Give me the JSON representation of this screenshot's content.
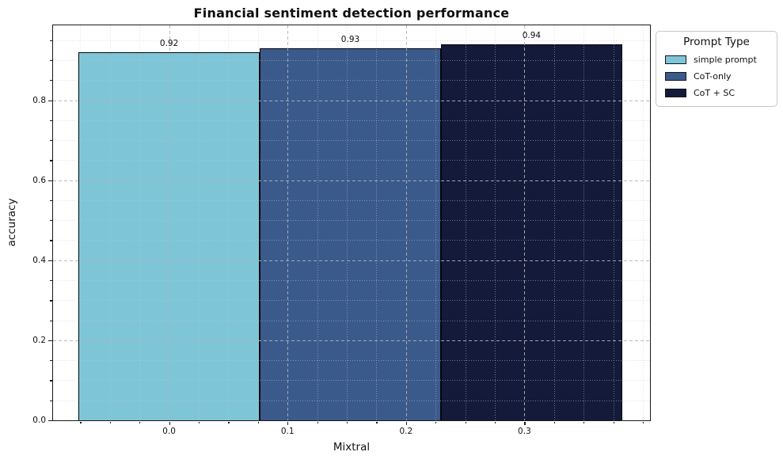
{
  "chart_data": {
    "type": "bar",
    "title": "Financial sentiment detection performance",
    "xlabel": "Mixtral",
    "ylabel": "accuracy",
    "categories": [
      "Mixtral"
    ],
    "legend": {
      "title": "Prompt Type",
      "position": "upper-right-outside"
    },
    "series": [
      {
        "name": "simple prompt",
        "value": 0.92,
        "value_label": "0.92",
        "color": "#7ec5d8",
        "center": 0.0
      },
      {
        "name": "CoT-only",
        "value": 0.93,
        "value_label": "0.93",
        "color": "#3a5a8b",
        "center": 0.153
      },
      {
        "name": "CoT + SC",
        "value": 0.94,
        "value_label": "0.94",
        "color": "#141a39",
        "center": 0.306
      }
    ],
    "bar_width": 0.153,
    "bar_edge_color": "#06060e",
    "x_ticks": [
      0.0,
      0.1,
      0.2,
      0.3
    ],
    "x_tick_labels": [
      "0.0",
      "0.1",
      "0.2",
      "0.3"
    ],
    "x_minor_step": 0.025,
    "y_ticks": [
      0.0,
      0.2,
      0.4,
      0.6,
      0.8
    ],
    "y_tick_labels": [
      "0.0",
      "0.2",
      "0.4",
      "0.6",
      "0.8"
    ],
    "y_minor_step": 0.05,
    "xlim": [
      -0.098,
      0.406
    ],
    "ylim": [
      0,
      0.987
    ],
    "grid": "both",
    "grid_major_style": "dashed",
    "grid_minor_style": "dotted"
  }
}
